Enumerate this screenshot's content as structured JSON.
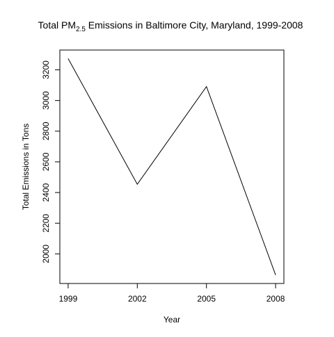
{
  "chart_data": {
    "type": "line",
    "title_parts": {
      "prefix": "Total PM",
      "subscript": "2.5",
      "suffix": " Emissions in Baltimore City, Maryland, 1999-2008"
    },
    "xlabel": "Year",
    "ylabel": "Total Emissions in Tons",
    "x": [
      1999,
      2002,
      2005,
      2008
    ],
    "x_tick_labels": [
      "1999",
      "2002",
      "2005",
      "2008"
    ],
    "y_ticks": [
      2000,
      2200,
      2400,
      2600,
      2800,
      3000,
      3200
    ],
    "y_tick_labels": [
      "2000",
      "2200",
      "2400",
      "2600",
      "2800",
      "3000",
      "3200"
    ],
    "series": [
      {
        "values": [
          3274,
          2454,
          3091,
          1862
        ]
      }
    ],
    "xlim": [
      1998.64,
      2008.36
    ],
    "ylim": [
      1806.9,
      3329.1
    ],
    "grid": false,
    "colors": {
      "line": "#000000",
      "axis": "#000000",
      "background": "#ffffff"
    }
  }
}
